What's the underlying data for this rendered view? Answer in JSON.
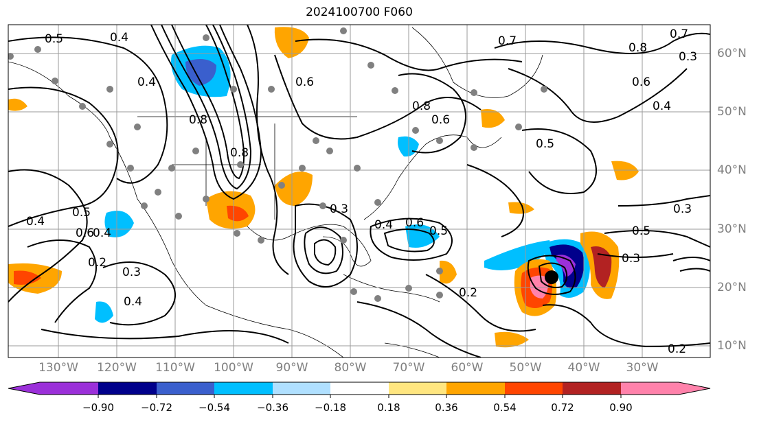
{
  "title": "2024100700 F060",
  "map": {
    "longitude_labels": [
      "130°W",
      "120°W",
      "110°W",
      "100°W",
      "90°W",
      "80°W",
      "70°W",
      "60°W",
      "50°W",
      "40°W",
      "30°W"
    ],
    "latitude_labels": [
      "60°N",
      "50°N",
      "40°N",
      "30°N",
      "20°N",
      "10°N"
    ],
    "contour_labels": [
      "0.5",
      "0.4",
      "0.4",
      "0.8",
      "0.6",
      "0.7",
      "0.8",
      "0.6",
      "0.4",
      "0.5",
      "0.3",
      "0.3",
      "0.3",
      "0.5",
      "0.2",
      "0.4",
      "0.6",
      "0.5",
      "0.3",
      "0.4",
      "0.5",
      "0.6",
      "0.4",
      "0.2",
      "0.3",
      "0.4",
      "0.8",
      "0.8",
      "0.6",
      "0.2",
      "0.7"
    ],
    "colorbar": {
      "tick_labels": [
        "−0.90",
        "−0.72",
        "−0.54",
        "−0.36",
        "−0.18",
        "0.18",
        "0.36",
        "0.54",
        "0.72",
        "0.90"
      ],
      "colors": [
        "#9b30d9",
        "#00008b",
        "#3a5fcd",
        "#00bfff",
        "#b0e0ff",
        "#ffffff",
        "#ffe680",
        "#ffa500",
        "#ff4500",
        "#b22222",
        "#ff82ab"
      ]
    }
  }
}
